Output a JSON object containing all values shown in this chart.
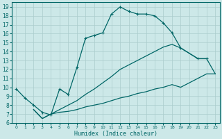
{
  "xlabel": "Humidex (Indice chaleur)",
  "bg_color": "#cce8e8",
  "grid_color": "#aacccc",
  "line_color": "#006666",
  "xlim": [
    -0.5,
    23.5
  ],
  "ylim": [
    6,
    19.5
  ],
  "xticks": [
    0,
    1,
    2,
    3,
    4,
    5,
    6,
    7,
    8,
    9,
    10,
    11,
    12,
    13,
    14,
    15,
    16,
    17,
    18,
    19,
    20,
    21,
    22,
    23
  ],
  "yticks": [
    6,
    7,
    8,
    9,
    10,
    11,
    12,
    13,
    14,
    15,
    16,
    17,
    18,
    19
  ],
  "line1_x": [
    0,
    1,
    2,
    3,
    4,
    5,
    6,
    7,
    8,
    9,
    10,
    11,
    12,
    13,
    14,
    15,
    16,
    17,
    18,
    19,
    21,
    22
  ],
  "line1_y": [
    9.8,
    8.8,
    8.0,
    7.2,
    6.9,
    9.8,
    9.2,
    12.2,
    15.5,
    15.8,
    16.1,
    18.2,
    19.0,
    18.5,
    18.2,
    18.2,
    18.0,
    17.2,
    16.1,
    14.4,
    13.2,
    13.2
  ],
  "line2_x": [
    2,
    3,
    4,
    5,
    6,
    7,
    8,
    9,
    10,
    11,
    12,
    13,
    14,
    15,
    16,
    17,
    18,
    19,
    21,
    22,
    23
  ],
  "line2_y": [
    7.5,
    6.5,
    7.0,
    7.5,
    8.0,
    8.5,
    9.2,
    9.8,
    10.5,
    11.2,
    12.0,
    12.5,
    13.0,
    13.5,
    14.0,
    14.5,
    14.8,
    14.4,
    13.2,
    13.2,
    11.5
  ],
  "line3_x": [
    2,
    3,
    4,
    5,
    6,
    7,
    8,
    9,
    10,
    11,
    12,
    13,
    14,
    15,
    16,
    17,
    18,
    19,
    22,
    23
  ],
  "line3_y": [
    7.5,
    6.5,
    7.0,
    7.2,
    7.3,
    7.5,
    7.8,
    8.0,
    8.2,
    8.5,
    8.8,
    9.0,
    9.3,
    9.5,
    9.8,
    10.0,
    10.3,
    10.0,
    11.5,
    11.5
  ]
}
